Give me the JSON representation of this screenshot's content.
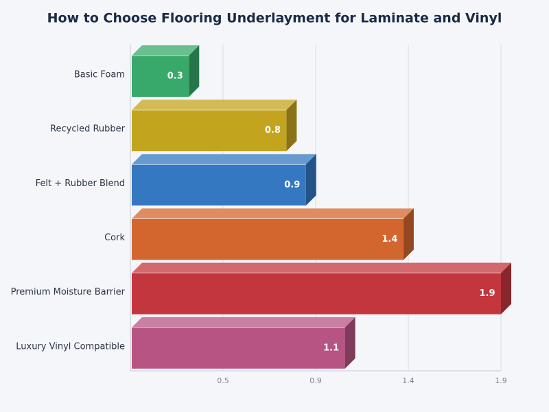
{
  "chart_data": {
    "type": "bar3d-horizontal",
    "title": "How to Choose Flooring Underlayment for Laminate and Vinyl",
    "categories": [
      "Basic Foam",
      "Recycled Rubber",
      "Felt + Rubber Blend",
      "Cork",
      "Premium Moisture Barrier",
      "Luxury Vinyl Compatible"
    ],
    "values": [
      0.3,
      0.8,
      0.9,
      1.4,
      1.9,
      1.1
    ],
    "colors": [
      "#38a96a",
      "#c3a41f",
      "#3478c1",
      "#d3652e",
      "#c4363d",
      "#b75483"
    ],
    "xlim": [
      0,
      1.9
    ],
    "xticks": [
      {
        "value": 0.475,
        "label": "0.5"
      },
      {
        "value": 0.95,
        "label": "0.9"
      },
      {
        "value": 1.425,
        "label": "1.4"
      },
      1.9
    ],
    "grid": true
  }
}
